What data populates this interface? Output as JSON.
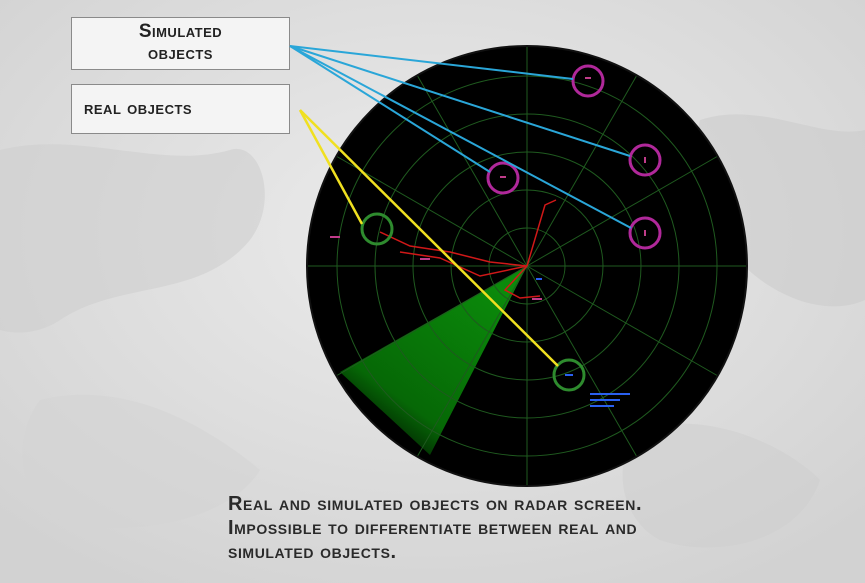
{
  "labels": {
    "simulated_line1": "Simulated",
    "simulated_line2": "objects",
    "real": "real objects"
  },
  "caption": {
    "line1": "Real and simulated objects on radar screen.",
    "line2": "Impossible to differentiate between real and",
    "line3": "simulated objects."
  },
  "colors": {
    "radar_bg": "#000000",
    "grid": "#1f5a1f",
    "sweep": "#0a7a0a",
    "simulated_marker": "#b0289a",
    "real_marker": "#2e8b2e",
    "simulated_pointer": "#2aa6d8",
    "real_pointer": "#f0e020",
    "track": "#d01818",
    "annotation_text": "#3050e0"
  }
}
